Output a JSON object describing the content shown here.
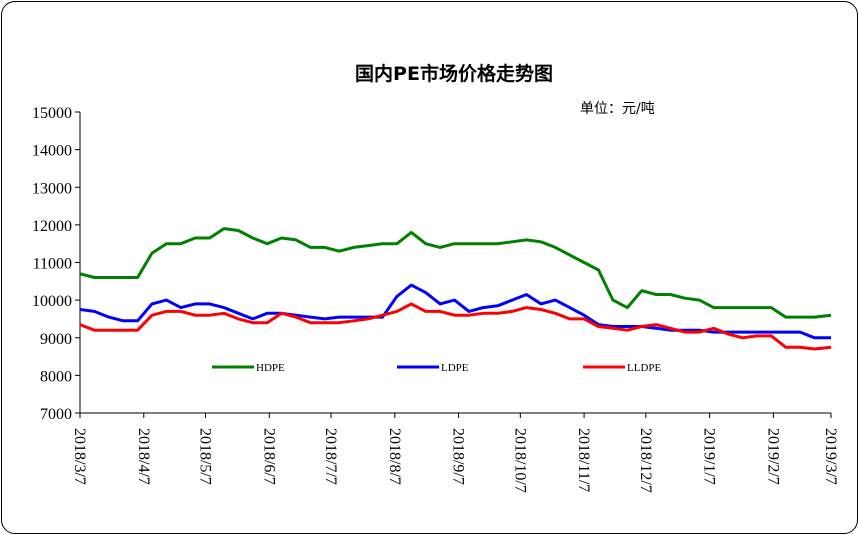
{
  "chart_data": {
    "type": "line",
    "title": "国内PE市场价格走势图",
    "unit_label": "单位：元/吨",
    "ylim": [
      7000,
      15000
    ],
    "yticks": [
      7000,
      8000,
      9000,
      10000,
      11000,
      12000,
      13000,
      14000,
      15000
    ],
    "x_dates": [
      "2018/3/7",
      "2018/3/14",
      "2018/3/21",
      "2018/3/28",
      "2018/4/4",
      "2018/4/11",
      "2018/4/18",
      "2018/4/25",
      "2018/5/2",
      "2018/5/9",
      "2018/5/16",
      "2018/5/23",
      "2018/5/30",
      "2018/6/6",
      "2018/6/13",
      "2018/6/20",
      "2018/6/27",
      "2018/7/4",
      "2018/7/11",
      "2018/7/18",
      "2018/7/25",
      "2018/8/1",
      "2018/8/8",
      "2018/8/15",
      "2018/8/22",
      "2018/8/29",
      "2018/9/5",
      "2018/9/12",
      "2018/9/19",
      "2018/9/26",
      "2018/10/3",
      "2018/10/10",
      "2018/10/17",
      "2018/10/24",
      "2018/10/31",
      "2018/11/7",
      "2018/11/14",
      "2018/11/21",
      "2018/11/28",
      "2018/12/5",
      "2018/12/12",
      "2018/12/19",
      "2018/12/26",
      "2019/1/2",
      "2019/1/9",
      "2019/1/16",
      "2019/1/23",
      "2019/1/30",
      "2019/2/6",
      "2019/2/13",
      "2019/2/20",
      "2019/2/27",
      "2019/3/7"
    ],
    "xtick_labels": [
      "2018/3/7",
      "2018/4/7",
      "2018/5/7",
      "2018/6/7",
      "2018/7/7",
      "2018/8/7",
      "2018/9/7",
      "2018/10/7",
      "2018/11/7",
      "2018/12/7",
      "2019/1/7",
      "2019/2/7",
      "2019/3/7"
    ],
    "series": [
      {
        "name": "HDPE",
        "color": "#008000",
        "values": [
          10700,
          10600,
          10600,
          10600,
          10600,
          11250,
          11500,
          11500,
          11650,
          11650,
          11900,
          11850,
          11650,
          11500,
          11650,
          11600,
          11400,
          11400,
          11300,
          11400,
          11450,
          11500,
          11500,
          11800,
          11500,
          11400,
          11500,
          11500,
          11500,
          11500,
          11550,
          11600,
          11550,
          11400,
          11200,
          11000,
          10800,
          10000,
          9800,
          10250,
          10150,
          10150,
          10050,
          10000,
          9800,
          9800,
          9800,
          9800,
          9800,
          9550,
          9550,
          9550,
          9600
        ]
      },
      {
        "name": "LDPE",
        "color": "#0000ff",
        "values": [
          9750,
          9700,
          9550,
          9450,
          9450,
          9900,
          10000,
          9800,
          9900,
          9900,
          9800,
          9650,
          9500,
          9650,
          9650,
          9600,
          9550,
          9500,
          9550,
          9550,
          9550,
          9550,
          10100,
          10400,
          10200,
          9900,
          10000,
          9700,
          9800,
          9850,
          10000,
          10150,
          9900,
          10000,
          9800,
          9600,
          9350,
          9300,
          9300,
          9300,
          9250,
          9200,
          9200,
          9200,
          9150,
          9150,
          9150,
          9150,
          9150,
          9150,
          9150,
          9000,
          9000
        ]
      },
      {
        "name": "LLDPE",
        "color": "#ff0000",
        "values": [
          9350,
          9200,
          9200,
          9200,
          9200,
          9600,
          9700,
          9700,
          9600,
          9600,
          9650,
          9500,
          9400,
          9400,
          9650,
          9550,
          9400,
          9400,
          9400,
          9450,
          9500,
          9600,
          9700,
          9900,
          9700,
          9700,
          9600,
          9600,
          9650,
          9650,
          9700,
          9800,
          9750,
          9650,
          9500,
          9500,
          9300,
          9250,
          9200,
          9300,
          9350,
          9250,
          9150,
          9150,
          9250,
          9100,
          9000,
          9050,
          9050,
          8750,
          8750,
          8700,
          8750
        ]
      }
    ],
    "legend_position": "bottom-inside",
    "grid": false
  }
}
